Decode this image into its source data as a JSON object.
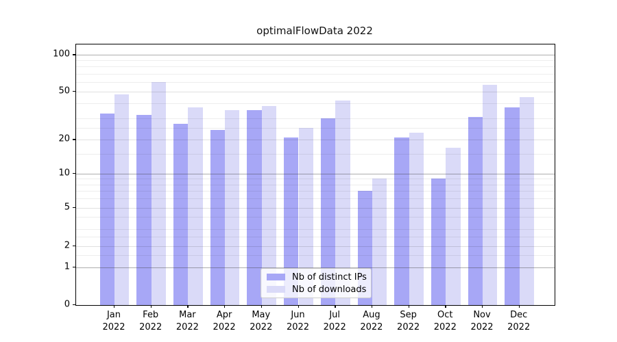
{
  "chart_data": {
    "type": "bar",
    "title": "optimalFlowData 2022",
    "categories": [
      "Jan",
      "Feb",
      "Mar",
      "Apr",
      "May",
      "Jun",
      "Jul",
      "Aug",
      "Sep",
      "Oct",
      "Nov",
      "Dec"
    ],
    "year_label": "2022",
    "series": [
      {
        "name": "Nb of distinct IPs",
        "color": "#a7a7f6",
        "values": [
          33,
          32,
          27,
          24,
          35,
          21,
          30,
          7,
          21,
          9,
          31,
          37
        ]
      },
      {
        "name": "Nb of downloads",
        "color": "#dadaf8",
        "values": [
          47,
          60,
          37,
          35,
          38,
          25,
          42,
          9,
          23,
          17,
          57,
          45
        ]
      }
    ],
    "xlabel": "",
    "ylabel": "",
    "yscale": "symlog",
    "ylim": [
      0,
      120
    ],
    "y_major_ticks": [
      100,
      50,
      20,
      10,
      5,
      2,
      1,
      0
    ],
    "y_minor_ticks": [
      1.5,
      2.5,
      3,
      4,
      6,
      7,
      8,
      9,
      15,
      25,
      30,
      40,
      60,
      70,
      80,
      90
    ],
    "grid": true,
    "grid_above_bars": true,
    "legend_position": "lower-center"
  },
  "colors": {
    "decade_gridline": "rgba(60,60,60,0.42)",
    "tick_gridline": "rgba(0,0,0,0.12)",
    "minor_gridline": "rgba(0,0,0,0.07)",
    "spine": "#000000",
    "text": "#000000"
  }
}
